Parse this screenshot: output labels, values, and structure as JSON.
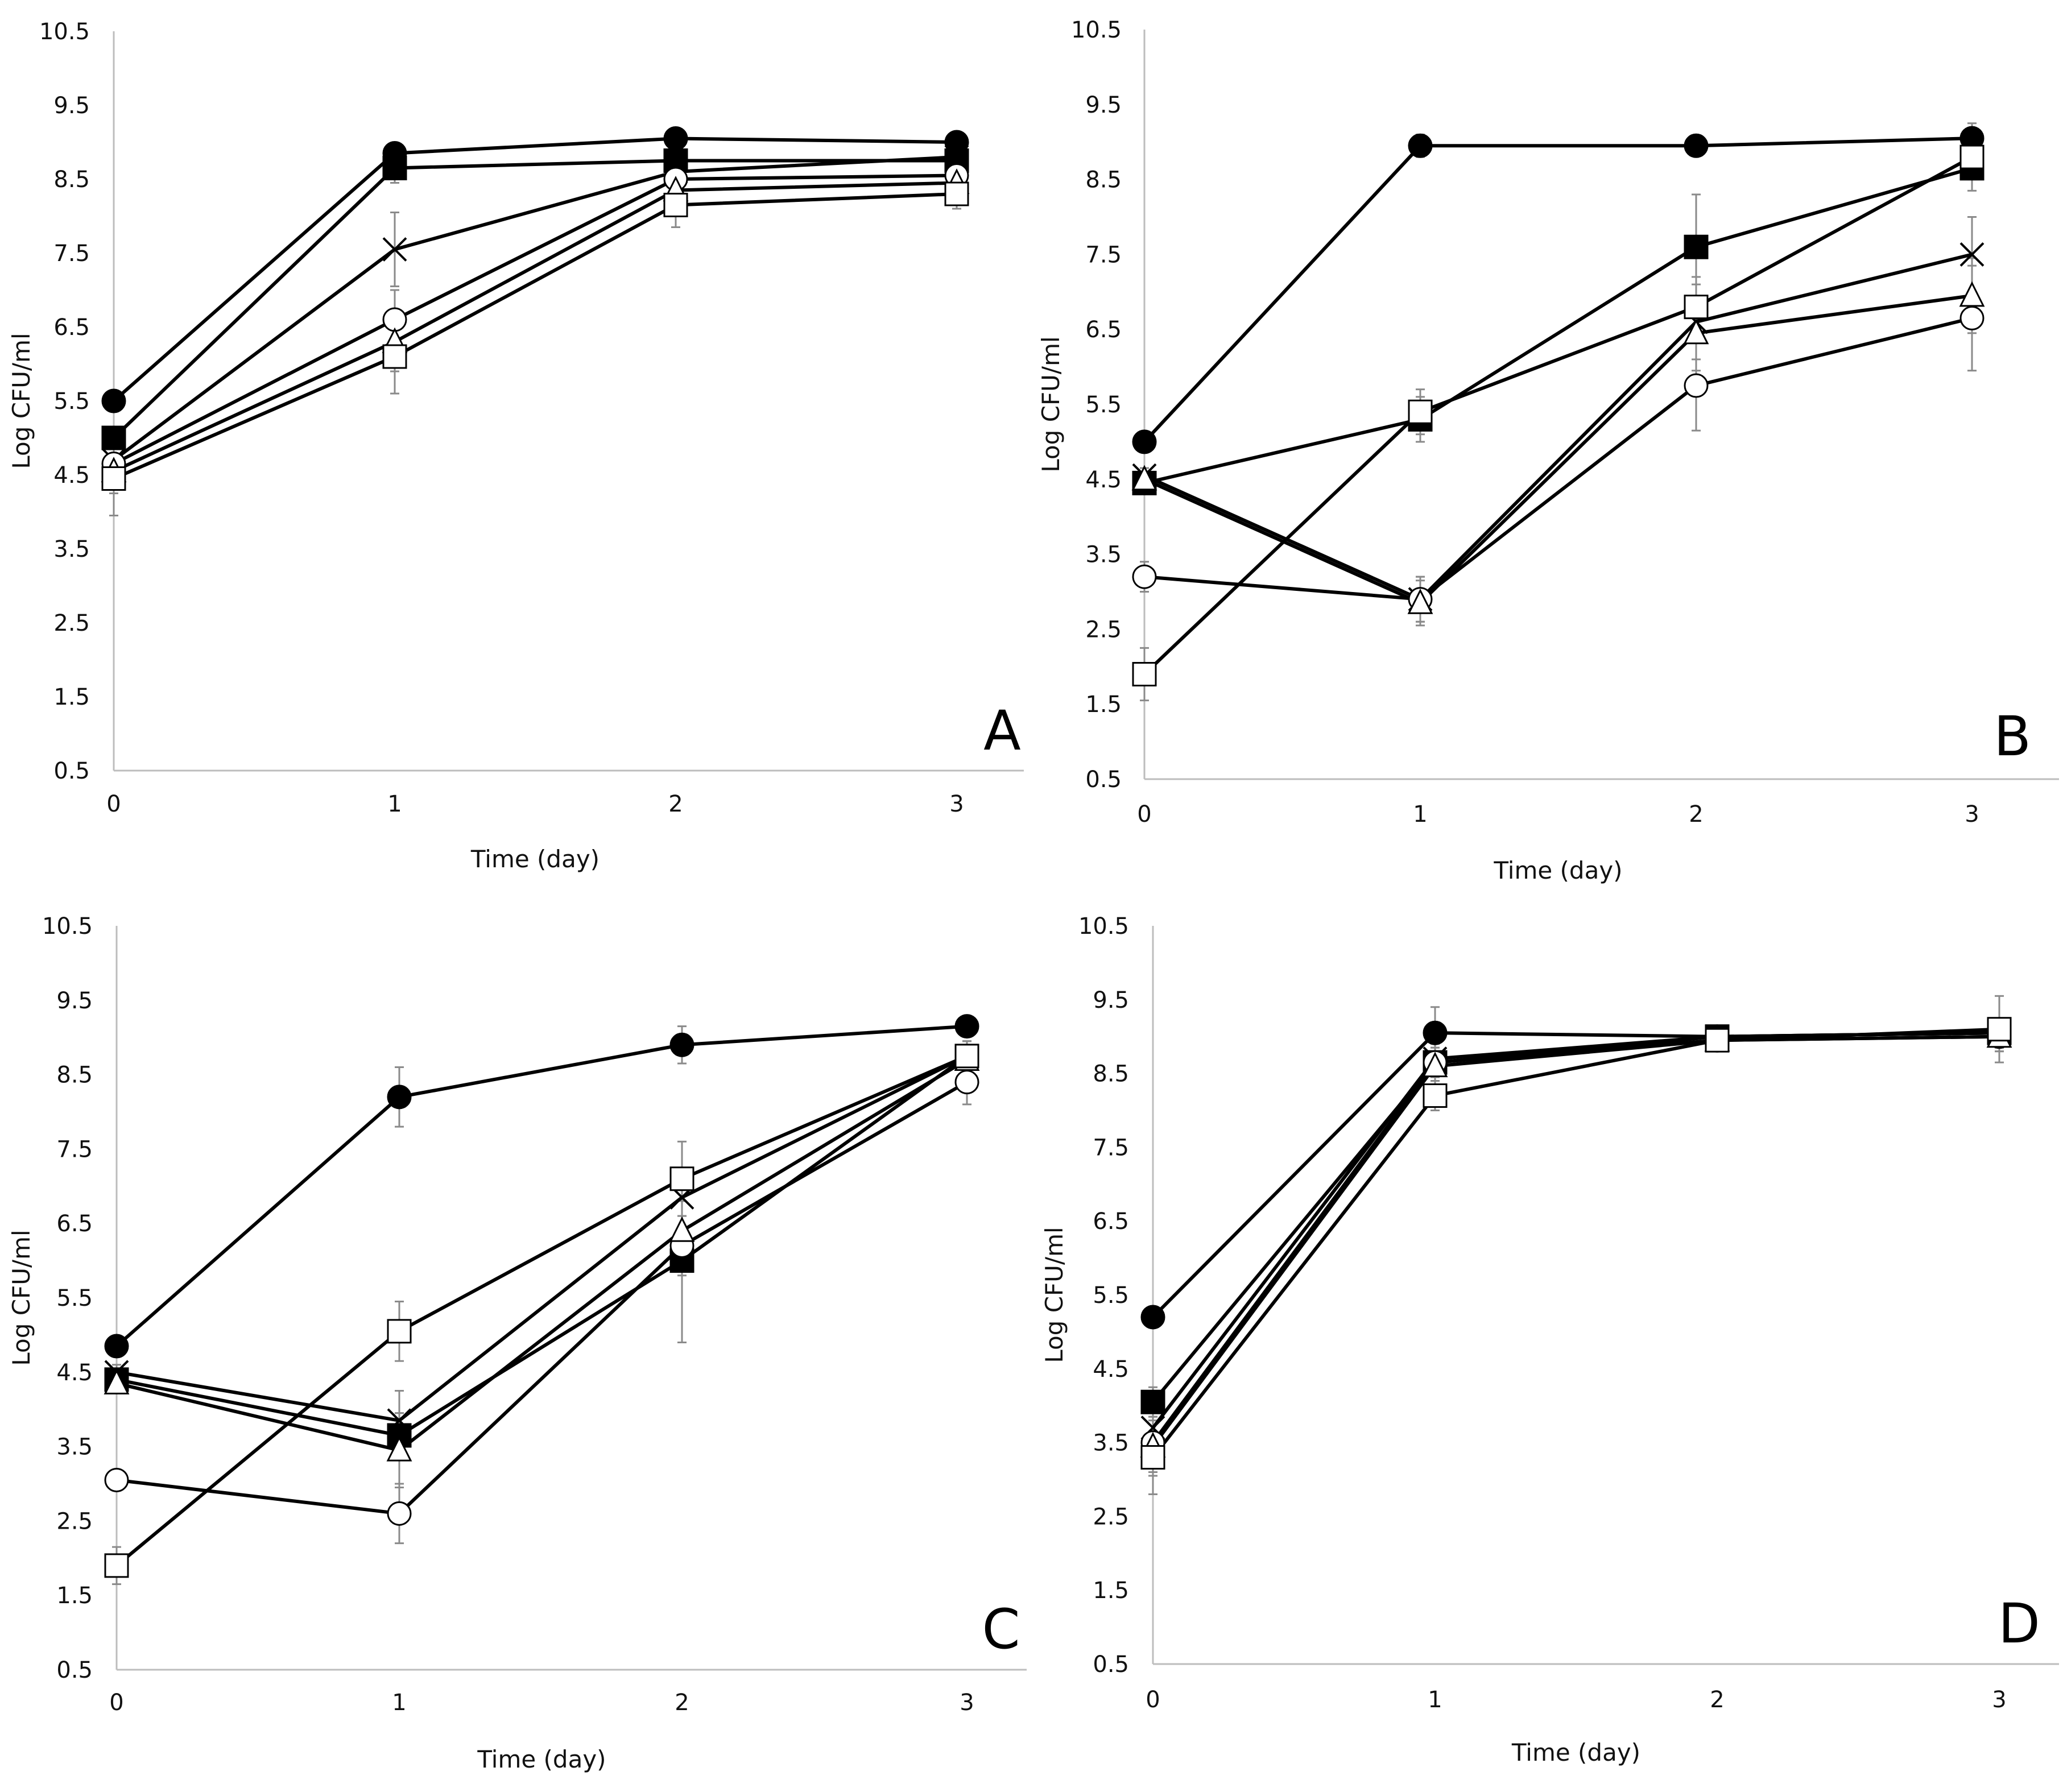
{
  "chart_data": [
    {
      "type": "line",
      "panel": "A",
      "x": [
        0,
        1,
        2,
        3
      ],
      "xlabel": "Time (day)",
      "ylabel": "Log CFU/ml",
      "ylim": [
        0.5,
        10.5
      ],
      "yticks": [
        "0.5",
        "1.5",
        "2.5",
        "3.5",
        "4.5",
        "5.5",
        "6.5",
        "7.5",
        "8.5",
        "9.5",
        "10.5"
      ],
      "xticks": [
        "0",
        "1",
        "2",
        "3"
      ],
      "grid": false,
      "series": [
        {
          "marker": "filled-circle",
          "values": [
            5.5,
            8.85,
            9.05,
            9.0
          ],
          "errors": [
            0.1,
            0.1,
            0.1,
            0.1
          ]
        },
        {
          "marker": "filled-square",
          "values": [
            5.0,
            8.65,
            8.75,
            8.75
          ],
          "errors": [
            0.1,
            0.2,
            0.1,
            0.1
          ]
        },
        {
          "marker": "cross",
          "values": [
            4.7,
            7.55,
            8.6,
            8.8
          ],
          "errors": [
            0.2,
            0.5,
            0.2,
            0.1
          ]
        },
        {
          "marker": "open-circle",
          "values": [
            4.65,
            6.6,
            8.5,
            8.55
          ],
          "errors": [
            0.3,
            0.4,
            0.2,
            0.1
          ]
        },
        {
          "marker": "open-triangle",
          "values": [
            4.55,
            6.3,
            8.35,
            8.45
          ],
          "errors": [
            0.3,
            0.4,
            0.2,
            0.1
          ]
        },
        {
          "marker": "open-square",
          "values": [
            4.45,
            6.1,
            8.15,
            8.3
          ],
          "errors": [
            0.5,
            0.5,
            0.3,
            0.2
          ]
        }
      ]
    },
    {
      "type": "line",
      "panel": "B",
      "x": [
        0,
        1,
        2,
        3
      ],
      "xlabel": "Time (day)",
      "ylabel": "Log CFU/ml",
      "ylim": [
        0.5,
        10.5
      ],
      "yticks": [
        "0.5",
        "1.5",
        "2.5",
        "3.5",
        "4.5",
        "5.5",
        "6.5",
        "7.5",
        "8.5",
        "9.5",
        "10.5"
      ],
      "xticks": [
        "0",
        "1",
        "2",
        "3"
      ],
      "grid": false,
      "series": [
        {
          "marker": "filled-circle",
          "values": [
            5.0,
            8.95,
            8.95,
            9.05
          ],
          "errors": [
            0.1,
            0.15,
            0.1,
            0.2
          ]
        },
        {
          "marker": "filled-square",
          "values": [
            4.45,
            5.3,
            7.6,
            8.65
          ],
          "errors": [
            0.1,
            0.3,
            0.7,
            0.3
          ]
        },
        {
          "marker": "cross",
          "values": [
            4.55,
            2.9,
            6.6,
            7.5
          ],
          "errors": [
            0.1,
            0.3,
            0.5,
            0.5
          ]
        },
        {
          "marker": "open-circle",
          "values": [
            3.2,
            2.9,
            5.75,
            6.65
          ],
          "errors": [
            0.2,
            0.3,
            0.6,
            0.7
          ]
        },
        {
          "marker": "open-triangle",
          "values": [
            4.5,
            2.85,
            6.45,
            6.95
          ],
          "errors": [
            0.1,
            0.3,
            0.5,
            0.5
          ]
        },
        {
          "marker": "open-square",
          "values": [
            1.9,
            5.4,
            6.8,
            8.8
          ],
          "errors": [
            0.35,
            0.3,
            0.4,
            0.3
          ]
        }
      ]
    },
    {
      "type": "line",
      "panel": "C",
      "x": [
        0,
        1,
        2,
        3
      ],
      "xlabel": "Time (day)",
      "ylabel": "Log CFU/ml",
      "ylim": [
        0.5,
        10.5
      ],
      "yticks": [
        "0.5",
        "1.5",
        "2.5",
        "3.5",
        "4.5",
        "5.5",
        "6.5",
        "7.5",
        "8.5",
        "9.5",
        "10.5"
      ],
      "xticks": [
        "0",
        "1",
        "2",
        "3"
      ],
      "grid": false,
      "series": [
        {
          "marker": "filled-circle",
          "values": [
            4.85,
            8.2,
            8.9,
            9.15
          ],
          "errors": [
            0.1,
            0.4,
            0.25,
            0.1
          ]
        },
        {
          "marker": "filled-square",
          "values": [
            4.4,
            3.65,
            6.0,
            8.75
          ],
          "errors": [
            0.1,
            0.3,
            1.1,
            0.2
          ]
        },
        {
          "marker": "cross",
          "values": [
            4.5,
            3.85,
            6.85,
            8.75
          ],
          "errors": [
            0.1,
            0.4,
            0.4,
            0.2
          ]
        },
        {
          "marker": "open-circle",
          "values": [
            3.05,
            2.6,
            6.2,
            8.4
          ],
          "errors": [
            0.1,
            0.4,
            0.4,
            0.3
          ]
        },
        {
          "marker": "open-triangle",
          "values": [
            4.35,
            3.45,
            6.4,
            8.7
          ],
          "errors": [
            0.1,
            0.5,
            0.4,
            0.2
          ]
        },
        {
          "marker": "open-square",
          "values": [
            1.9,
            5.05,
            7.1,
            8.75
          ],
          "errors": [
            0.25,
            0.4,
            0.5,
            0.2
          ]
        }
      ]
    },
    {
      "type": "line",
      "panel": "D",
      "x": [
        0,
        1,
        2,
        3
      ],
      "xlabel": "Time (day)",
      "ylabel": "Log CFU/ml",
      "ylim": [
        0.5,
        10.5
      ],
      "yticks": [
        "0.5",
        "1.5",
        "2.5",
        "3.5",
        "4.5",
        "5.5",
        "6.5",
        "7.5",
        "8.5",
        "9.5",
        "10.5"
      ],
      "xticks": [
        "0",
        "1",
        "2",
        "3"
      ],
      "grid": false,
      "series": [
        {
          "marker": "filled-circle",
          "values": [
            5.2,
            9.05,
            9.0,
            9.05
          ],
          "errors": [
            0.1,
            0.35,
            0.1,
            0.2
          ]
        },
        {
          "marker": "filled-square",
          "values": [
            4.05,
            8.65,
            9.0,
            9.05
          ],
          "errors": [
            0.2,
            0.2,
            0.1,
            0.2
          ]
        },
        {
          "marker": "cross",
          "values": [
            3.7,
            8.7,
            9.0,
            9.05
          ],
          "errors": [
            0.3,
            0.2,
            0.1,
            0.2
          ]
        },
        {
          "marker": "open-circle",
          "values": [
            3.5,
            8.65,
            8.95,
            9.0
          ],
          "errors": [
            0.4,
            0.2,
            0.1,
            0.2
          ]
        },
        {
          "marker": "open-triangle",
          "values": [
            3.45,
            8.6,
            8.95,
            9.0
          ],
          "errors": [
            0.4,
            0.2,
            0.1,
            0.2
          ]
        },
        {
          "marker": "open-square",
          "values": [
            3.3,
            8.2,
            8.95,
            9.1
          ],
          "errors": [
            0.5,
            0.2,
            0.1,
            0.45
          ]
        }
      ]
    }
  ]
}
